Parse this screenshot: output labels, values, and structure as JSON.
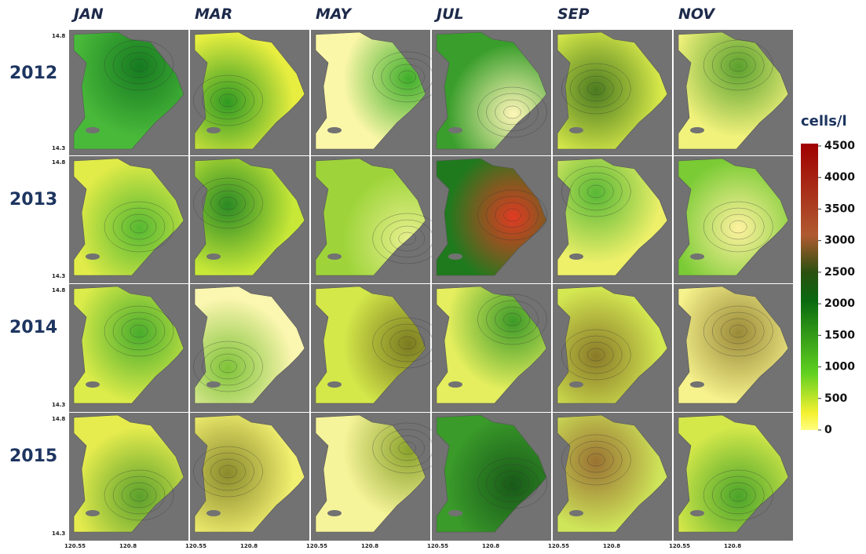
{
  "months": [
    "JAN",
    "MAR",
    "MAY",
    "JUL",
    "SEP",
    "NOV"
  ],
  "years": [
    "2012",
    "2013",
    "2014",
    "2015"
  ],
  "lat_labels": [
    "14.8",
    "14.3"
  ],
  "lon_labels": [
    "120.55",
    "120.8"
  ],
  "colorbar": {
    "title": "cells/l",
    "lim": [
      0,
      4500
    ],
    "ticks": [
      0,
      500,
      1000,
      1500,
      2000,
      2500,
      3000,
      3500,
      4000,
      4500
    ]
  }
}
